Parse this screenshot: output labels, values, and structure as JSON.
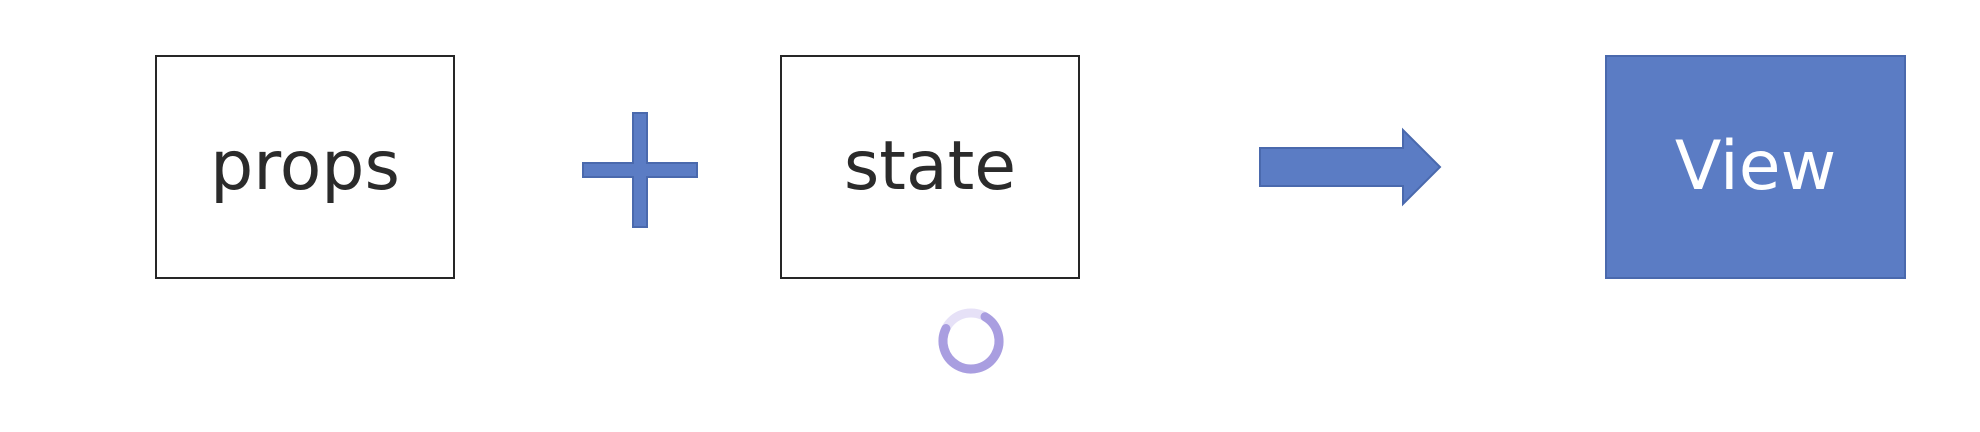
{
  "diagram": {
    "left_box": {
      "label": "props"
    },
    "operator": "plus-icon",
    "middle_box": {
      "label": "state"
    },
    "connector": "arrow-right-icon",
    "result_box": {
      "label": "View"
    },
    "loading_indicator": "spinner-icon"
  },
  "colors": {
    "accent": "#5b7cc4",
    "accent_border": "#4a69ad",
    "box_border": "#262626",
    "text_dark": "#2b2b2b",
    "text_light": "#ffffff",
    "spinner": "#a99ee0"
  }
}
